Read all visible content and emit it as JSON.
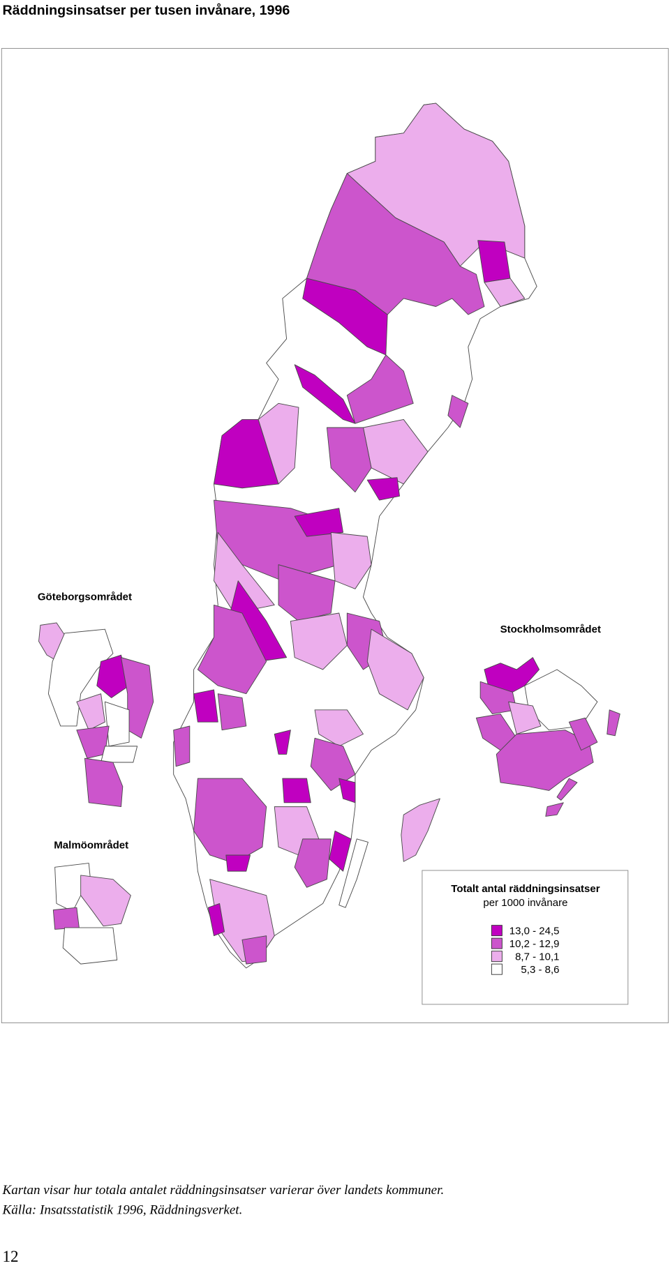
{
  "header": {
    "title": "Räddningsinsatser per tusen invånare, 1996"
  },
  "map": {
    "insets": [
      "Göteborgsområdet",
      "Stockholmsområdet",
      "Malmöområdet"
    ],
    "legend": {
      "title": [
        "Totalt antal räddningsinsatser",
        "per 1000 invånare"
      ],
      "items": [
        {
          "label": "13,0 - 24,5",
          "color": "#c000c0"
        },
        {
          "label": "10,2 - 12,9",
          "color": "#cc55cc"
        },
        {
          "label": "8,7 - 10,1",
          "color": "#ecaeec"
        },
        {
          "label": "5,3 - 8,6",
          "color": "#ffffff"
        }
      ]
    }
  },
  "caption": [
    "Kartan visar hur totala antalet räddningsinsatser varierar över landets kommuner.",
    "Källa: Insatsstatistik 1996, Räddningsverket."
  ],
  "page_number": "12"
}
